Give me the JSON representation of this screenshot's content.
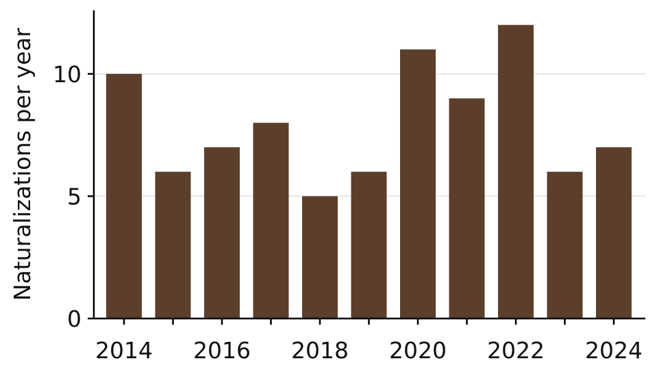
{
  "chart_data": {
    "type": "bar",
    "title": "",
    "xlabel": "",
    "ylabel": "Naturalizations per year",
    "categories": [
      "2014",
      "2015",
      "2016",
      "2017",
      "2018",
      "2019",
      "2020",
      "2021",
      "2022",
      "2023",
      "2024"
    ],
    "values": [
      10,
      6,
      7,
      8,
      5,
      6,
      11,
      9,
      12,
      6,
      7
    ],
    "ylim": [
      0,
      12.6
    ],
    "yticks": [
      0,
      5,
      10
    ],
    "xtick_labels": [
      "2014",
      "2016",
      "2018",
      "2020",
      "2022",
      "2024"
    ],
    "grid": "horizontal",
    "bar_color": "#5c3f2b",
    "grid_color": "#e6e6e6",
    "axis_color": "#000000"
  }
}
